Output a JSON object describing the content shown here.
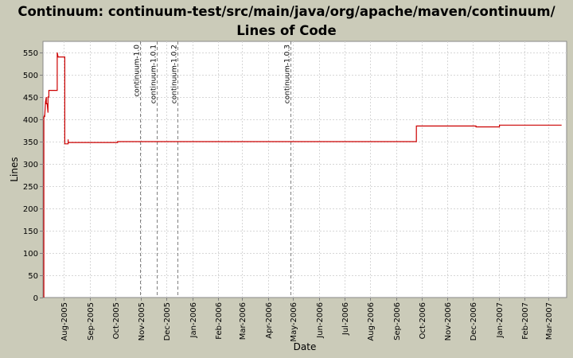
{
  "title": "Continuum: continuum-test/src/main/java/org/apache/maven/continuum/ Lines of Code",
  "colors": {
    "background": "#cbcbb9",
    "plot_background": "#ffffff",
    "series_line": "#cc0000",
    "grid": "#d7d7d7",
    "marker_line": "#808080"
  },
  "chart_data": {
    "type": "line",
    "title": "Continuum: continuum-test/src/main/java/org/apache/maven/continuum/ Lines of Code",
    "xlabel": "Date",
    "ylabel": "Lines",
    "ylim": [
      0,
      575
    ],
    "xlim": [
      "2005-07-07",
      "2007-03-23"
    ],
    "grid": true,
    "step": true,
    "y_ticks": [
      0,
      50,
      100,
      150,
      200,
      250,
      300,
      350,
      400,
      450,
      500,
      550
    ],
    "x_ticks": [
      {
        "date": "2005-08-01",
        "label": "Aug-2005"
      },
      {
        "date": "2005-09-01",
        "label": "Sep-2005"
      },
      {
        "date": "2005-10-01",
        "label": "Oct-2005"
      },
      {
        "date": "2005-11-01",
        "label": "Nov-2005"
      },
      {
        "date": "2005-12-01",
        "label": "Dec-2005"
      },
      {
        "date": "2006-01-01",
        "label": "Jan-2006"
      },
      {
        "date": "2006-02-01",
        "label": "Feb-2006"
      },
      {
        "date": "2006-03-01",
        "label": "Mar-2006"
      },
      {
        "date": "2006-04-01",
        "label": "Apr-2006"
      },
      {
        "date": "2006-05-01",
        "label": "May-2006"
      },
      {
        "date": "2006-06-01",
        "label": "Jun-2006"
      },
      {
        "date": "2006-07-01",
        "label": "Jul-2006"
      },
      {
        "date": "2006-08-01",
        "label": "Aug-2006"
      },
      {
        "date": "2006-09-01",
        "label": "Sep-2006"
      },
      {
        "date": "2006-10-01",
        "label": "Oct-2006"
      },
      {
        "date": "2006-11-01",
        "label": "Nov-2006"
      },
      {
        "date": "2006-12-01",
        "label": "Dec-2006"
      },
      {
        "date": "2007-01-01",
        "label": "Jan-2007"
      },
      {
        "date": "2007-02-01",
        "label": "Feb-2007"
      },
      {
        "date": "2007-03-01",
        "label": "Mar-2007"
      }
    ],
    "markers": [
      {
        "date": "2005-10-31",
        "label": "continuum-1.0"
      },
      {
        "date": "2005-11-20",
        "label": "continuum-1.0.1"
      },
      {
        "date": "2005-12-14",
        "label": "continuum-1.0.2"
      },
      {
        "date": "2006-04-28",
        "label": "continuum-1.0.3"
      }
    ],
    "series": [
      {
        "points": [
          [
            "2005-07-08",
            0
          ],
          [
            "2005-07-08",
            405
          ],
          [
            "2005-07-09",
            410
          ],
          [
            "2005-07-09",
            405
          ],
          [
            "2005-07-10",
            440
          ],
          [
            "2005-07-11",
            450
          ],
          [
            "2005-07-11",
            435
          ],
          [
            "2005-07-12",
            435
          ],
          [
            "2005-07-13",
            415
          ],
          [
            "2005-07-13",
            450
          ],
          [
            "2005-07-14",
            450
          ],
          [
            "2005-07-14",
            465
          ],
          [
            "2005-07-24",
            465
          ],
          [
            "2005-07-24",
            550
          ],
          [
            "2005-07-25",
            540
          ],
          [
            "2005-08-02",
            540
          ],
          [
            "2005-08-02",
            345
          ],
          [
            "2005-08-06",
            345
          ],
          [
            "2005-08-06",
            355
          ],
          [
            "2005-08-06",
            348
          ],
          [
            "2005-10-04",
            348
          ],
          [
            "2005-10-04",
            350
          ],
          [
            "2006-09-25",
            350
          ],
          [
            "2006-09-25",
            385
          ],
          [
            "2006-12-05",
            385
          ],
          [
            "2006-12-05",
            383
          ],
          [
            "2007-01-02",
            383
          ],
          [
            "2007-01-02",
            387
          ],
          [
            "2007-03-17",
            387
          ]
        ]
      }
    ]
  }
}
